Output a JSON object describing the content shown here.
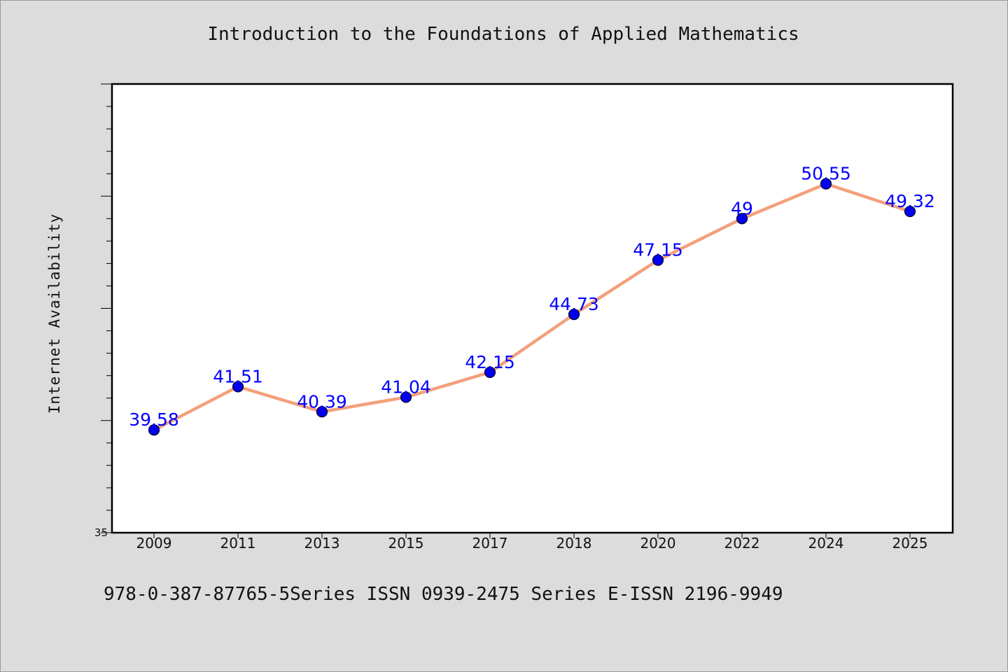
{
  "title": "Introduction to the Foundations of Applied Mathematics",
  "footer": "978-0-387-87765-5Series ISSN 0939-2475 Series E-ISSN 2196-9949",
  "colors": {
    "background": "#dcdcdc",
    "plot_background": "#ffffff",
    "line": "#f4a07c",
    "marker": "#0000ee",
    "data_label": "#0000ff"
  },
  "chart_data": {
    "type": "line",
    "title": "Introduction to the Foundations of Applied Mathematics",
    "xlabel": "",
    "ylabel": "Internet Availability",
    "categories": [
      "2009",
      "2011",
      "2013",
      "2015",
      "2017",
      "2018",
      "2020",
      "2022",
      "2024",
      "2025"
    ],
    "series": [
      {
        "values": [
          39.58,
          41.51,
          40.39,
          41.04,
          42.15,
          44.73,
          47.15,
          49,
          50.55,
          49.32
        ],
        "labels": [
          "39.58",
          "41.51",
          "40.39",
          "41.04",
          "42.15",
          "44.73",
          "47.15",
          "49",
          "50.55",
          "49.32"
        ]
      }
    ],
    "ylim": [
      35,
      55
    ],
    "y_tick_labels": [
      "35"
    ],
    "grid": false,
    "legend": "none"
  }
}
